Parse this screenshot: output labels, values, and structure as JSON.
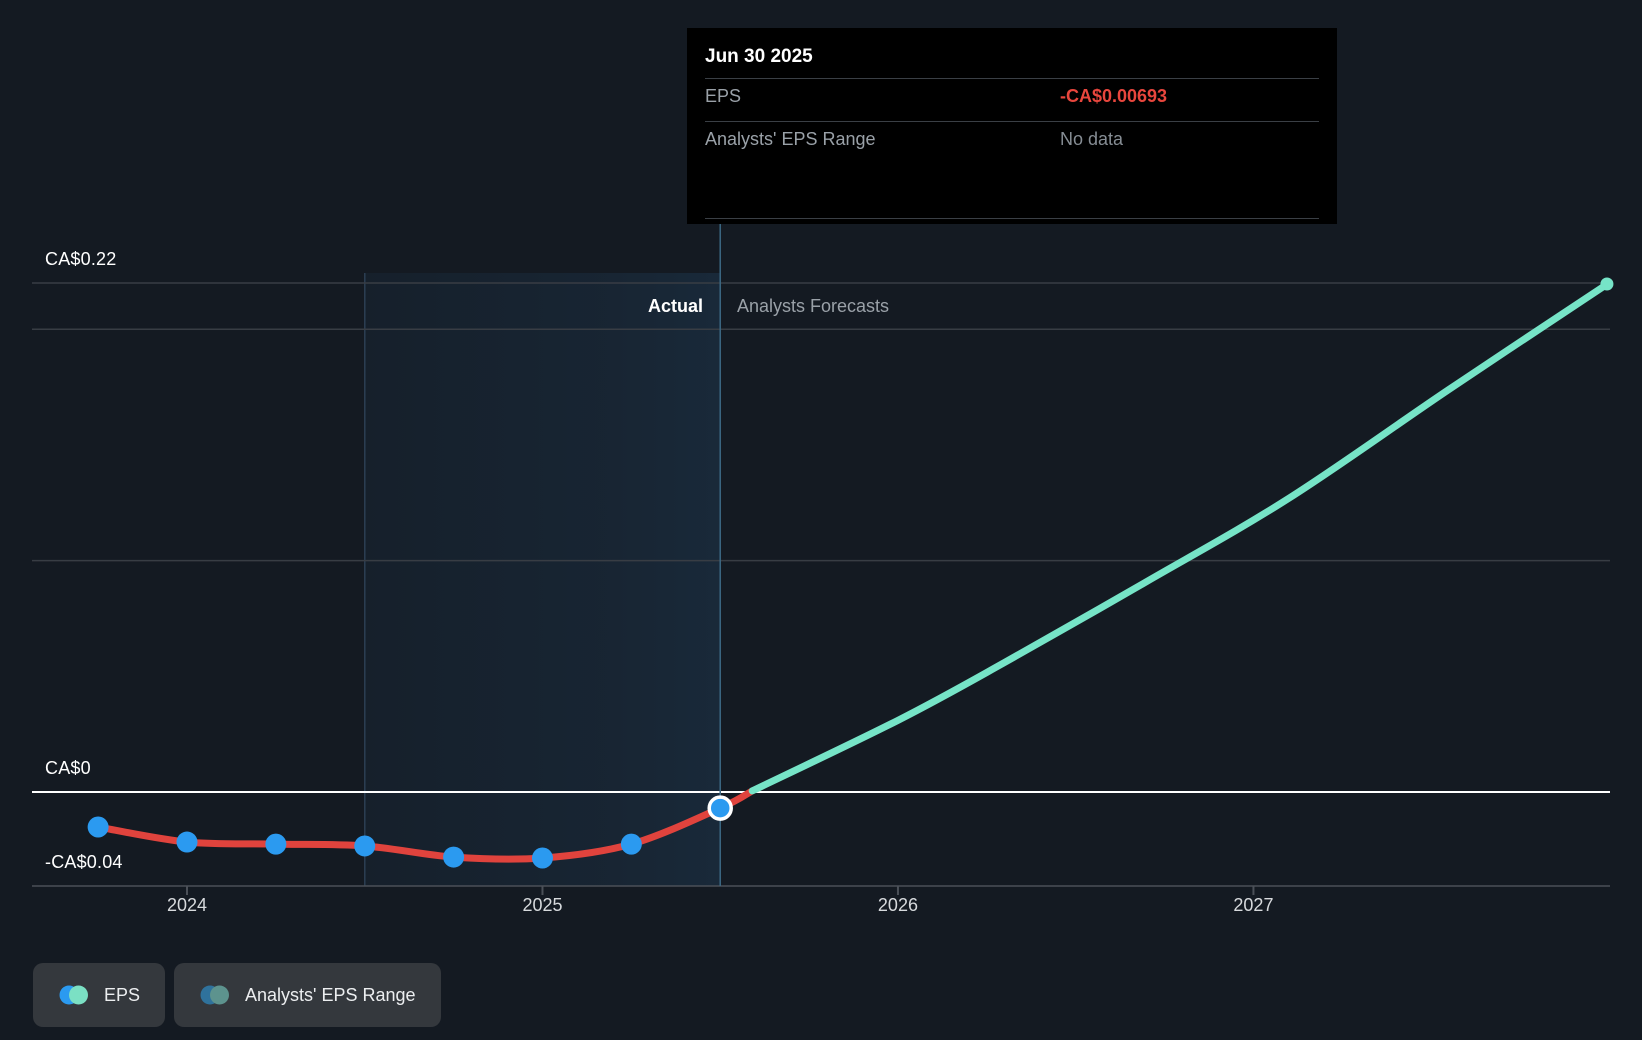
{
  "tooltip": {
    "title": "Jun 30 2025",
    "rows": [
      {
        "label": "EPS",
        "value": "-CA$0.00693",
        "value_color": "#e8463d"
      },
      {
        "label": "Analysts' EPS Range",
        "value": "No data",
        "value_color": "#868d94"
      }
    ]
  },
  "regions": {
    "actual_label": "Actual",
    "forecast_label": "Analysts Forecasts"
  },
  "legend": [
    {
      "label": "EPS",
      "dot_colors": [
        "#2b9af0",
        "#7be0c4"
      ]
    },
    {
      "label": "Analysts' EPS Range",
      "dot_colors": [
        "#2f729c",
        "#5d938e"
      ]
    }
  ],
  "colors": {
    "background": "#141a22",
    "actual_line": "#e0433d",
    "forecast_line": "#76e4c7",
    "dot_fill": "#2b9af0",
    "zero_line": "#ffffff",
    "gridline": "#383d44",
    "axis_line": "#4b5058",
    "hover_line": "#3c6883",
    "band_tint": "#2f6ea4",
    "negative_value": "#e8463d"
  },
  "chart_data": {
    "type": "line",
    "title": "EPS actual and analysts forecast (CA$)",
    "x_domain": [
      2023.564,
      2028.003
    ],
    "y_domain": [
      -0.0406,
      0.22
    ],
    "hover_x": 2025.5,
    "actual_highlight": [
      2024.5,
      2025.5
    ],
    "x_ticks": [
      {
        "year": 2024,
        "label": "2024"
      },
      {
        "year": 2025,
        "label": "2025"
      },
      {
        "year": 2026,
        "label": "2026"
      },
      {
        "year": 2027,
        "label": "2027"
      }
    ],
    "y_gridlines": [
      {
        "value": 0.22,
        "label": "CA$0.22",
        "style": "grid"
      },
      {
        "value": 0.2,
        "label": null,
        "style": "grid"
      },
      {
        "value": 0.1,
        "label": null,
        "style": "grid"
      },
      {
        "value": 0,
        "label": "CA$0",
        "style": "zero"
      },
      {
        "value": -0.0406,
        "label": "-CA$0.04",
        "style": "axis"
      }
    ],
    "series": [
      {
        "name": "EPS (actual)",
        "color": "#e0433d",
        "dates": [
          "Sep 30 2023",
          "Dec 31 2023",
          "Mar 31 2024",
          "Jun 30 2024",
          "Sep 30 2024",
          "Dec 31 2024",
          "Mar 31 2025",
          "Jun 30 2025",
          "zero-crossing"
        ],
        "points": [
          [
            2023.75,
            -0.0151
          ],
          [
            2024.0,
            -0.0216
          ],
          [
            2024.25,
            -0.0225
          ],
          [
            2024.5,
            -0.0233
          ],
          [
            2024.75,
            -0.0281
          ],
          [
            2025.0,
            -0.0285
          ],
          [
            2025.25,
            -0.0225
          ],
          [
            2025.5,
            -0.00693
          ],
          [
            2025.59,
            0.0005
          ]
        ],
        "dot_count": 8,
        "highlight_index": 7
      },
      {
        "name": "EPS (analysts forecast)",
        "color": "#76e4c7",
        "points": [
          [
            2025.59,
            0.0005
          ],
          [
            2026.0,
            0.031
          ],
          [
            2026.3,
            0.056
          ],
          [
            2026.7,
            0.091
          ],
          [
            2027.1,
            0.127
          ],
          [
            2027.55,
            0.174
          ],
          [
            2028.0,
            0.22
          ]
        ],
        "end_marker": true
      }
    ]
  }
}
